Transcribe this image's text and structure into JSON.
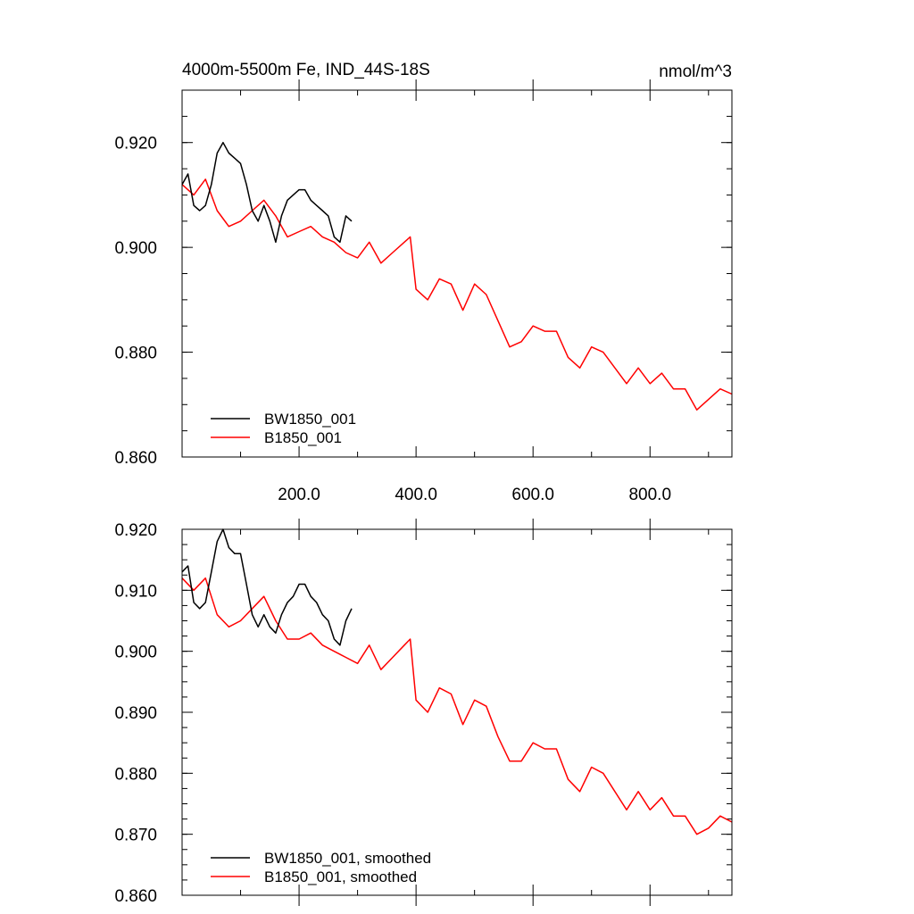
{
  "chart_data": [
    {
      "type": "line",
      "title": "4000m-5500m Fe, IND_44S-18S",
      "units": "nmol/m^3",
      "xlim": [
        0,
        940
      ],
      "ylim": [
        0.86,
        0.93
      ],
      "xticks": [
        200,
        400,
        600,
        800
      ],
      "xtick_labels": [
        "200.0",
        "400.0",
        "600.0",
        "800.0"
      ],
      "yticks": [
        0.86,
        0.88,
        0.9,
        0.92
      ],
      "ytick_labels": [
        "0.860",
        "0.880",
        "0.900",
        "0.920"
      ],
      "legend_position": "bottom-left",
      "series": [
        {
          "name": "BW1850_001",
          "color": "#000000",
          "x": [
            0,
            10,
            20,
            30,
            40,
            50,
            60,
            70,
            80,
            90,
            100,
            110,
            120,
            130,
            140,
            150,
            160,
            170,
            180,
            190,
            200,
            210,
            220,
            230,
            240,
            250,
            260,
            270,
            280,
            290
          ],
          "y": [
            0.912,
            0.914,
            0.908,
            0.907,
            0.908,
            0.912,
            0.918,
            0.92,
            0.918,
            0.917,
            0.916,
            0.912,
            0.907,
            0.905,
            0.908,
            0.905,
            0.901,
            0.906,
            0.909,
            0.91,
            0.911,
            0.911,
            0.909,
            0.908,
            0.907,
            0.906,
            0.902,
            0.901,
            0.906,
            0.905
          ]
        },
        {
          "name": "B1850_001",
          "color": "#ff0000",
          "x": [
            0,
            20,
            40,
            60,
            80,
            100,
            120,
            140,
            160,
            180,
            200,
            220,
            240,
            260,
            280,
            300,
            320,
            340,
            360,
            380,
            390,
            400,
            420,
            440,
            460,
            480,
            500,
            520,
            540,
            560,
            580,
            600,
            620,
            640,
            660,
            680,
            700,
            720,
            740,
            760,
            780,
            800,
            820,
            840,
            860,
            880,
            900,
            920,
            940
          ],
          "y": [
            0.912,
            0.91,
            0.913,
            0.907,
            0.904,
            0.905,
            0.907,
            0.909,
            0.906,
            0.902,
            0.903,
            0.904,
            0.902,
            0.901,
            0.899,
            0.898,
            0.901,
            0.897,
            0.899,
            0.901,
            0.902,
            0.892,
            0.89,
            0.894,
            0.893,
            0.888,
            0.893,
            0.891,
            0.886,
            0.881,
            0.882,
            0.885,
            0.884,
            0.884,
            0.879,
            0.877,
            0.881,
            0.88,
            0.877,
            0.874,
            0.877,
            0.874,
            0.876,
            0.873,
            0.873,
            0.869,
            0.871,
            0.873,
            0.872
          ]
        }
      ]
    },
    {
      "type": "line",
      "title": "",
      "xlim": [
        0,
        940
      ],
      "ylim": [
        0.86,
        0.92
      ],
      "yticks": [
        0.86,
        0.87,
        0.88,
        0.89,
        0.9,
        0.91,
        0.92
      ],
      "ytick_labels": [
        "0.860",
        "0.870",
        "0.880",
        "0.890",
        "0.900",
        "0.910",
        "0.920"
      ],
      "legend_position": "bottom-left",
      "series": [
        {
          "name": "BW1850_001, smoothed",
          "color": "#000000",
          "x": [
            0,
            10,
            20,
            30,
            40,
            50,
            60,
            70,
            80,
            90,
            100,
            110,
            120,
            130,
            140,
            150,
            160,
            170,
            180,
            190,
            200,
            210,
            220,
            230,
            240,
            250,
            260,
            270,
            280,
            290
          ],
          "y": [
            0.913,
            0.914,
            0.908,
            0.907,
            0.908,
            0.913,
            0.918,
            0.92,
            0.917,
            0.916,
            0.916,
            0.911,
            0.906,
            0.904,
            0.906,
            0.904,
            0.903,
            0.906,
            0.908,
            0.909,
            0.911,
            0.911,
            0.909,
            0.908,
            0.906,
            0.905,
            0.902,
            0.901,
            0.905,
            0.907
          ]
        },
        {
          "name": "B1850_001, smoothed",
          "color": "#ff0000",
          "x": [
            0,
            20,
            40,
            60,
            80,
            100,
            120,
            140,
            160,
            180,
            200,
            220,
            240,
            260,
            280,
            300,
            320,
            340,
            360,
            380,
            390,
            400,
            420,
            440,
            460,
            480,
            500,
            520,
            540,
            560,
            580,
            600,
            620,
            640,
            660,
            680,
            700,
            720,
            740,
            760,
            780,
            800,
            820,
            840,
            860,
            880,
            900,
            920,
            940
          ],
          "y": [
            0.912,
            0.91,
            0.912,
            0.906,
            0.904,
            0.905,
            0.907,
            0.909,
            0.905,
            0.902,
            0.902,
            0.903,
            0.901,
            0.9,
            0.899,
            0.898,
            0.901,
            0.897,
            0.899,
            0.901,
            0.902,
            0.892,
            0.89,
            0.894,
            0.893,
            0.888,
            0.892,
            0.891,
            0.886,
            0.882,
            0.882,
            0.885,
            0.884,
            0.884,
            0.879,
            0.877,
            0.881,
            0.88,
            0.877,
            0.874,
            0.877,
            0.874,
            0.876,
            0.873,
            0.873,
            0.87,
            0.871,
            0.873,
            0.872
          ]
        }
      ]
    }
  ]
}
